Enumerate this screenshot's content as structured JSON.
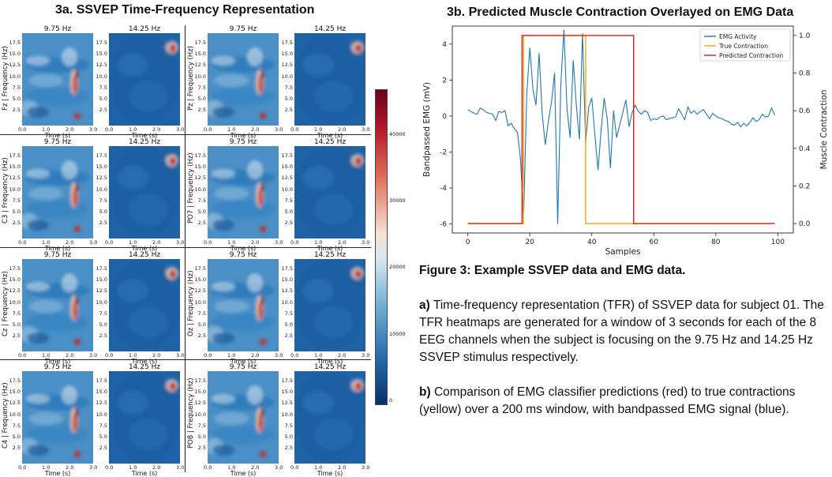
{
  "left_title": "3a. SSVEP Time-Frequency Representation",
  "right_title": "3b. Predicted Muscle Contraction Overlayed on EMG Data",
  "heatmap_grid": {
    "col_titles": [
      "9.75 Hz",
      "14.25 Hz"
    ],
    "x_label": "Time (s)",
    "x_ticks": [
      "0.0",
      "1.0",
      "2.0",
      "3.0"
    ],
    "y_ticks": [
      "17.5",
      "15.0",
      "12.5",
      "10.0",
      "7.5",
      "5.0",
      "2.5"
    ],
    "channels": [
      {
        "label": "Fz | Frequency (Hz)"
      },
      {
        "label": "Pz | Frequency (Hz)"
      },
      {
        "label": "C3 | Frequency (Hz)"
      },
      {
        "label": "PO7 | Frequency (Hz)"
      },
      {
        "label": "Cz | Frequency (Hz)"
      },
      {
        "label": "Oz | Frequency (Hz)"
      },
      {
        "label": "C4 | Frequency (Hz)"
      },
      {
        "label": "PO8 | Frequency (Hz)"
      }
    ],
    "colorbar_ticks": [
      "40000",
      "30000",
      "20000",
      "10000",
      "0"
    ]
  },
  "chart_data": {
    "type": "line",
    "title": "",
    "xlabel": "Samples",
    "ylabel": "Bandpassed EMG (mV)",
    "y2label": "Muscle Contraction",
    "xlim": [
      -5,
      105
    ],
    "ylim": [
      -6.5,
      5.0
    ],
    "y2lim": [
      -0.05,
      1.05
    ],
    "x_ticks": [
      0,
      20,
      40,
      60,
      80,
      100
    ],
    "y_ticks": [
      -6,
      -4,
      -2,
      0,
      2,
      4
    ],
    "y2_ticks": [
      "0.0",
      "0.2",
      "0.4",
      "0.6",
      "0.8",
      "1.0"
    ],
    "legend_position": "top-right",
    "series": [
      {
        "name": "EMG Activity",
        "color": "#1f77b4",
        "axis": "left",
        "x": [
          0,
          1,
          2,
          3,
          4,
          5,
          6,
          7,
          8,
          9,
          10,
          11,
          12,
          13,
          14,
          15,
          16,
          17,
          18,
          19,
          20,
          21,
          22,
          23,
          24,
          25,
          26,
          27,
          28,
          29,
          30,
          31,
          32,
          33,
          34,
          35,
          36,
          37,
          38,
          39,
          40,
          41,
          42,
          43,
          44,
          45,
          46,
          47,
          48,
          49,
          50,
          51,
          52,
          53,
          54,
          55,
          56,
          57,
          58,
          59,
          60,
          61,
          62,
          63,
          64,
          65,
          66,
          67,
          68,
          69,
          70,
          71,
          72,
          73,
          74,
          75,
          76,
          77,
          78,
          79,
          80,
          81,
          82,
          83,
          84,
          85,
          86,
          87,
          88,
          89,
          90,
          91,
          92,
          93,
          94,
          95,
          96,
          97,
          98,
          99
        ],
        "values": [
          0.35,
          0.25,
          0.15,
          0.1,
          0.45,
          0.35,
          0.2,
          0.15,
          0.1,
          -0.25,
          0.25,
          0.2,
          0.3,
          -0.55,
          -0.4,
          -0.7,
          -0.9,
          -2.4,
          -5.7,
          1.2,
          3.8,
          1.5,
          0.6,
          3.5,
          0.1,
          -1.6,
          -0.3,
          0.8,
          2.4,
          -6.0,
          1.8,
          4.8,
          0.4,
          -1.2,
          3.1,
          0.6,
          -1.3,
          4.6,
          -1.5,
          0.5,
          1.0,
          -1.1,
          -3.0,
          -0.8,
          1.0,
          -0.2,
          -2.9,
          0.3,
          -1.2,
          -0.5,
          0.2,
          0.9,
          -0.6,
          0.2,
          0.6,
          0.25,
          0.1,
          0.3,
          0.2,
          -0.25,
          -0.15,
          -0.2,
          -0.05,
          0.0,
          -0.2,
          -0.15,
          -0.1,
          -0.05,
          0.4,
          0.1,
          -0.2,
          0.5,
          0.15,
          0.3,
          0.1,
          0.25,
          0.35,
          0.1,
          -0.15,
          0.15,
          0.0,
          -0.1,
          -0.15,
          -0.25,
          -0.3,
          -0.45,
          -0.5,
          -0.35,
          -0.6,
          -0.4,
          -0.55,
          -0.35,
          -0.1,
          -0.3,
          -0.2,
          0.1,
          -0.05,
          0.0,
          0.45,
          0.05
        ]
      },
      {
        "name": "True Contraction",
        "color": "#ffa500",
        "axis": "right",
        "x": [
          0,
          18,
          18,
          38,
          38,
          99
        ],
        "values": [
          0,
          0,
          1,
          1,
          0,
          0
        ]
      },
      {
        "name": "Predicted Contraction",
        "color": "#e31a1c",
        "axis": "right",
        "x": [
          0,
          17.5,
          17.5,
          53.5,
          53.5,
          99
        ],
        "values": [
          0,
          0,
          1,
          1,
          0,
          0
        ]
      }
    ]
  },
  "caption": {
    "heading": "Figure 3: Example SSVEP data and EMG data.",
    "para_a_label": "a)",
    "para_a_text": " Time-frequency representation (TFR) of SSVEP data for subject 01. The TFR heatmaps are generated for a window of 3 seconds for each of the 8 EEG channels when the subject is focusing on the 9.75 Hz and 14.25 Hz SSVEP stimulus respectively.",
    "para_b_label": "b)",
    "para_b_text": " Comparison of EMG classifier predictions (red) to true contractions (yellow) over a 200 ms window, with bandpassed EMG signal (blue)."
  }
}
